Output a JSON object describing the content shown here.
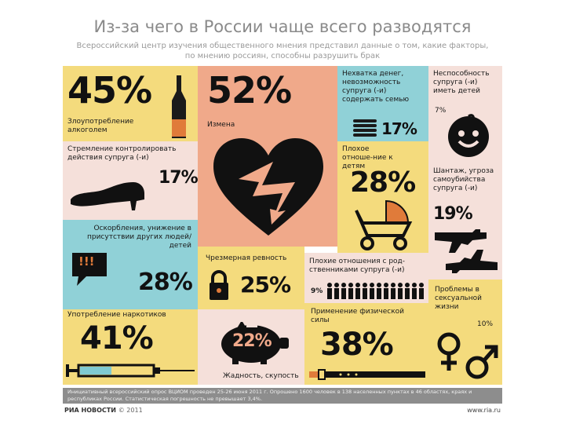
{
  "title": "Из-за чего в России чаще всего разводятся",
  "subtitle": "Всероссийский центр изучения общественного мнения представил данные о том, какие факторы, по мнению россиян, способны разрушить брак",
  "items": {
    "alcohol": {
      "label": "Злоупотребление алкоголем",
      "percent": "45%"
    },
    "betrayal": {
      "label": "Измена",
      "percent": "52%"
    },
    "money": {
      "label": "Нехватка денег, невозможность супруга (-и) содержать семью",
      "percent": "17%"
    },
    "infertility": {
      "label": "Неспособность супруга (-и) иметь детей",
      "percent": "7%"
    },
    "control": {
      "label": "Стремление контролировать действия супруга (-и)",
      "percent": "17%"
    },
    "children": {
      "label": "Плохое отноше-ние к детям",
      "percent": "28%"
    },
    "blackmail": {
      "label": "Шантаж, угроза самоубийства супруга (-и)",
      "percent": "19%"
    },
    "insults": {
      "label": "Оскорбления, унижение в присутствии других людей/детей",
      "percent": "28%",
      "icon_text": "!!!"
    },
    "jealousy": {
      "label": "Чрезмерная ревность",
      "percent": "25%"
    },
    "relatives": {
      "label": "Плохие отношения с род-ственниками супруга (-и)",
      "percent": "9%"
    },
    "drugs": {
      "label": "Употребление наркотиков",
      "percent": "41%"
    },
    "greed": {
      "label": "Жадность, скупость",
      "percent": "22%"
    },
    "violence": {
      "label": "Применение физической силы",
      "percent": "38%"
    },
    "sexual": {
      "label": "Проблемы в сексуальной жизни",
      "percent": "10%"
    }
  },
  "footer": "Инициативный всероссийский опрос ВЦИОМ проведен 25-26 июня 2011 г. Опрошено 1600 человек в 138 населенных пунктах в 46 областях, краях и республиках России. Статистическая погрешность не превышает 3,4%.",
  "brand": {
    "name": "РИА НОВОСТИ",
    "copyright": "© 2011"
  },
  "site": "www.ria.ru",
  "colors": {
    "yellow": "#f4db7d",
    "salmon": "#f0a98a",
    "cyan": "#90d1d7",
    "pink": "#f5e0da"
  },
  "icons": [
    "bottle-icon",
    "broken-heart-icon",
    "coins-icon",
    "baby-face-icon",
    "shoe-icon",
    "stroller-icon",
    "revolver-icon",
    "speech-bubble-icon",
    "padlock-icon",
    "people-row-icon",
    "syringe-icon",
    "piggy-bank-icon",
    "belt-icon",
    "gender-symbols-icon"
  ]
}
